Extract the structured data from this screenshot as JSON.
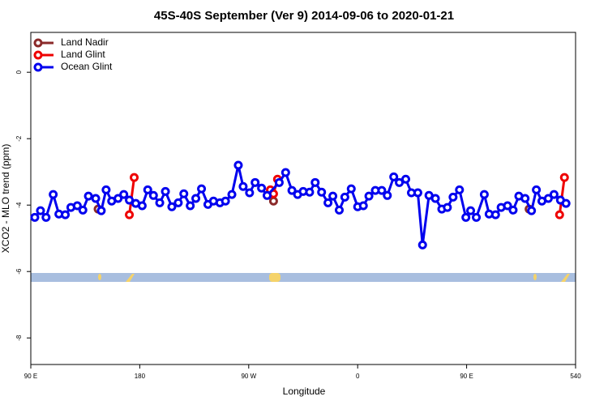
{
  "chart_data": {
    "type": "line",
    "title": "45S-40S September (Ver 9)   2014-09-06 to 2020-01-21",
    "x_label": "Longitude",
    "y_label": "XCO2 - MLO trend (ppm)",
    "xlim": [
      90,
      540
    ],
    "xticks": [
      {
        "value": 90,
        "label": "90 E"
      },
      180,
      {
        "value": 270,
        "label": "90 W"
      },
      {
        "value": 360,
        "label": "0"
      },
      {
        "value": 450,
        "label": "90 E"
      },
      540
    ],
    "ylim": [
      -8.8,
      1.2
    ],
    "yticks": [
      0,
      -2,
      -4,
      -6,
      -8
    ],
    "legend": "top-left",
    "series": [
      {
        "name": "Land Nadir",
        "color": "#8b2a2a",
        "x": [
          145.6,
          null,
          290.5,
          null,
          501.6
        ],
        "values": [
          -4.12,
          null,
          -3.88,
          null,
          -4.12
        ]
      },
      {
        "name": "Land Glint",
        "color": "#ee0000",
        "x": [
          171.4,
          175.4,
          null,
          287.9,
          290.5,
          293.8,
          null,
          526.8,
          530.8
        ],
        "values": [
          -4.29,
          -3.17,
          null,
          -3.54,
          -3.66,
          -3.22,
          null,
          -4.29,
          -3.17
        ]
      },
      {
        "name": "Ocean Glint",
        "color": "#0000ee",
        "x": [
          93.3,
          98,
          102.6,
          108.5,
          113.2,
          118.5,
          123.1,
          128.4,
          133,
          137.6,
          143.6,
          148.2,
          152.2,
          156.8,
          162.1,
          166.8,
          171.4,
          176.7,
          182,
          186.6,
          191.3,
          196.5,
          201.2,
          206.5,
          211.8,
          216.4,
          221.7,
          226.3,
          231,
          236.3,
          240.9,
          246.2,
          250.8,
          256.1,
          261.4,
          265.4,
          270.7,
          275.3,
          280.6,
          285.2,
          295.2,
          300.5,
          305.7,
          310.4,
          315,
          320.3,
          324.9,
          330.2,
          335.5,
          339.5,
          344.8,
          349.4,
          354.7,
          360,
          364.7,
          369.3,
          374.6,
          379.9,
          384.5,
          389.8,
          394.4,
          399.7,
          404.4,
          409.7,
          413.6,
          418.9,
          424.2,
          429.5,
          434.1,
          438.8,
          444.1,
          449.4,
          453.3,
          458,
          464.6,
          468.6,
          473.9,
          478.5,
          483.8,
          488.4,
          493.1,
          498.3,
          503.6,
          507.6,
          512.2,
          517.5,
          522.2,
          527.5,
          532.1
        ],
        "values": [
          -4.37,
          -4.17,
          -4.37,
          -3.68,
          -4.27,
          -4.29,
          -4.07,
          -4.02,
          -4.15,
          -3.73,
          -3.8,
          -4.17,
          -3.54,
          -3.88,
          -3.8,
          -3.68,
          -3.85,
          -3.95,
          -4.02,
          -3.54,
          -3.71,
          -3.93,
          -3.59,
          -4.05,
          -3.93,
          -3.66,
          -4.02,
          -3.8,
          -3.51,
          -3.98,
          -3.88,
          -3.93,
          -3.88,
          -3.68,
          -2.8,
          -3.44,
          -3.63,
          -3.32,
          -3.49,
          -3.71,
          -3.32,
          -3.02,
          -3.56,
          -3.68,
          -3.59,
          -3.61,
          -3.32,
          -3.61,
          -3.93,
          -3.73,
          -4.15,
          -3.76,
          -3.51,
          -4.05,
          -4.02,
          -3.73,
          -3.56,
          -3.56,
          -3.71,
          -3.15,
          -3.32,
          -3.22,
          -3.63,
          -3.63,
          -5.2,
          -3.71,
          -3.8,
          -4.12,
          -4.07,
          -3.76,
          -3.54,
          -4.37,
          -4.17,
          -4.37,
          -3.68,
          -4.27,
          -4.29,
          -4.07,
          -4.02,
          -4.15,
          -3.73,
          -3.8,
          -4.17,
          -3.54,
          -3.88,
          -3.8,
          -3.68,
          -3.85,
          -3.95
        ]
      }
    ]
  }
}
